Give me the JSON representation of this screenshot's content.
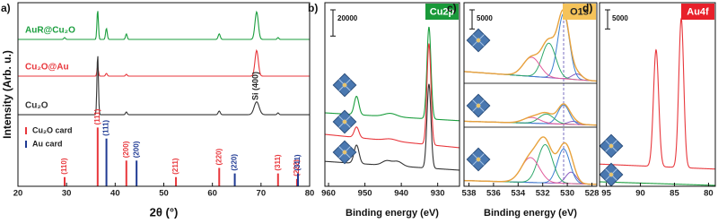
{
  "chart_data": [
    {
      "type": "line",
      "label": "a)",
      "xlabel": "2θ (°)",
      "ylabel": "Intensity (Arb. u.)",
      "xlim": [
        20,
        80
      ],
      "xticks": [
        20,
        30,
        40,
        50,
        60,
        70,
        80
      ],
      "ylim": [
        0,
        100
      ],
      "legend": "left",
      "annotation": "Si (400)",
      "series": [
        {
          "name": "AuR@Cu₂O",
          "color": "#1b9e3e",
          "baseline": [
            80,
            80
          ],
          "peaks": [
            {
              "center": 29.6,
              "height": 1,
              "width": 0.4
            },
            {
              "center": 36.4,
              "height": 16,
              "width": 0.35
            },
            {
              "center": 38.2,
              "height": 6,
              "width": 0.4
            },
            {
              "center": 42.3,
              "height": 3,
              "width": 0.4
            },
            {
              "center": 61.4,
              "height": 3,
              "width": 0.5
            },
            {
              "center": 69.1,
              "height": 15,
              "width": 0.8
            },
            {
              "center": 73.5,
              "height": 1,
              "width": 0.4
            }
          ]
        },
        {
          "name": "Cu₂O@Au",
          "color": "#e8373c",
          "baseline": [
            60,
            60
          ],
          "peaks": [
            {
              "center": 36.4,
              "height": 5,
              "width": 0.35
            },
            {
              "center": 38.2,
              "height": 1.5,
              "width": 0.4
            },
            {
              "center": 42.3,
              "height": 1,
              "width": 0.4
            },
            {
              "center": 69.1,
              "height": 14,
              "width": 0.8
            }
          ]
        },
        {
          "name": "Cu₂O",
          "color": "#333333",
          "baseline": [
            39,
            39
          ],
          "peaks": [
            {
              "center": 36.4,
              "height": 33,
              "width": 0.35
            },
            {
              "center": 42.3,
              "height": 1.5,
              "width": 0.4
            },
            {
              "center": 61.4,
              "height": 2,
              "width": 0.5
            },
            {
              "center": 69.1,
              "height": 7,
              "width": 1.2
            },
            {
              "center": 73.5,
              "height": 1,
              "width": 0.4
            }
          ]
        }
      ],
      "cards": [
        {
          "name": "Cu₂O card",
          "color": "#e8373c",
          "positions": [
            29.6,
            36.4,
            42.3,
            52.5,
            61.4,
            73.5,
            77.4
          ],
          "heights": [
            5,
            32,
            14,
            5,
            10,
            7,
            4
          ],
          "labels": [
            "(110)",
            "(111)",
            "(200)",
            "(211)",
            "(220)",
            "(311)",
            "(222)"
          ]
        },
        {
          "name": "Au card",
          "color": "#1f3a93",
          "positions": [
            38.2,
            44.4,
            64.6,
            77.6
          ],
          "heights": [
            26,
            14,
            7,
            7
          ],
          "labels": [
            "(111)",
            "(200)",
            "(220)",
            "(311)"
          ]
        }
      ]
    },
    {
      "type": "line",
      "label": "b)",
      "xlabel": "Binding energy (eV)",
      "badge": "Cu2p",
      "badge_color": "#1a9a3a",
      "badge_text_color": "#ffffff",
      "xlim": [
        961,
        924
      ],
      "xticks": [
        960,
        950,
        940,
        930
      ],
      "ylim": [
        0,
        140000
      ],
      "scale_bar": 20000,
      "series": [
        {
          "color": "#1b9e3e",
          "baseline": [
            56000,
            50000
          ],
          "peaks": [
            {
              "center": 952.3,
              "height": 14000,
              "width": 1.5
            },
            {
              "center": 943,
              "height": 2500,
              "width": 4
            },
            {
              "center": 932.4,
              "height": 70000,
              "width": 1.3
            }
          ]
        },
        {
          "color": "#e8373c",
          "baseline": [
            39600,
            29400
          ],
          "peaks": [
            {
              "center": 952.3,
              "height": 8000,
              "width": 1.5
            },
            {
              "center": 943,
              "height": 1500,
              "width": 4
            },
            {
              "center": 932.4,
              "height": 77000,
              "width": 1.3
            }
          ]
        },
        {
          "color": "#333333",
          "baseline": [
            19000,
            12300
          ],
          "peaks": [
            {
              "center": 952.3,
              "height": 14000,
              "width": 1.6
            },
            {
              "center": 944,
              "height": 3500,
              "width": 3
            },
            {
              "center": 941,
              "height": 3500,
              "width": 3
            },
            {
              "center": 932.4,
              "height": 64000,
              "width": 1.3
            }
          ]
        }
      ]
    },
    {
      "type": "line",
      "label": "c)",
      "xlabel": "Binding energy (eV)",
      "badge": "O1s",
      "badge_color": "#f5c35a",
      "badge_text_color": "#222222",
      "xlim": [
        538.4,
        527.6
      ],
      "xticks": [
        538,
        536,
        534,
        532,
        530,
        528
      ],
      "ylim": [
        0,
        48000
      ],
      "scale_bar": 5000,
      "ref_line": 530.3,
      "ref_color": "#7a6fc2",
      "series": [
        {
          "color": "#e8a33d",
          "baseline": [
            30000,
            27500
          ],
          "peaks": [
            {
              "center": 529.2,
              "height": 1500,
              "width": 1.0,
              "color": "#8a5bbf"
            },
            {
              "center": 530.3,
              "height": 17000,
              "width": 1.1,
              "color": "#3a7fd0"
            },
            {
              "center": 531.5,
              "height": 9000,
              "width": 1.3,
              "color": "#2fa86b"
            },
            {
              "center": 532.9,
              "height": 5000,
              "width": 1.6,
              "color": "#e05a9a"
            }
          ]
        },
        {
          "color": "#e8a33d",
          "baseline": [
            17000,
            16000
          ],
          "peaks": [
            {
              "center": 529.5,
              "height": 800,
              "width": 1.0,
              "color": "#8a5bbf"
            },
            {
              "center": 530.3,
              "height": 5000,
              "width": 1.1,
              "color": "#3a7fd0"
            },
            {
              "center": 531.7,
              "height": 2500,
              "width": 1.4,
              "color": "#2fa86b"
            },
            {
              "center": 532.9,
              "height": 1500,
              "width": 1.6,
              "color": "#e05a9a"
            }
          ]
        },
        {
          "color": "#e8a33d",
          "baseline": [
            1500,
            500
          ],
          "peaks": [
            {
              "center": 529.7,
              "height": 3000,
              "width": 1.0,
              "color": "#8a5bbf"
            },
            {
              "center": 530.3,
              "height": 9000,
              "width": 1.2,
              "color": "#3a7fd0"
            },
            {
              "center": 531.8,
              "height": 10000,
              "width": 1.4,
              "color": "#2fa86b"
            },
            {
              "center": 533,
              "height": 6500,
              "width": 1.7,
              "color": "#e05a9a"
            }
          ]
        }
      ]
    },
    {
      "type": "line",
      "label": "d)",
      "badge": "Au4f",
      "badge_color": "#e8202a",
      "badge_text_color": "#ffffff",
      "xlim": [
        96,
        79
      ],
      "xticks": [
        95,
        90,
        85,
        80
      ],
      "ylim": [
        0,
        48000
      ],
      "scale_bar": 5000,
      "series": [
        {
          "color": "#e8373c",
          "baseline": [
            5800,
            4500
          ],
          "peaks": [
            {
              "center": 87.7,
              "height": 30500,
              "width": 0.9
            },
            {
              "center": 84.0,
              "height": 39000,
              "width": 0.85
            }
          ]
        },
        {
          "color": "#1b9e3e",
          "baseline": [
            1170,
            230
          ],
          "peaks": []
        }
      ]
    }
  ]
}
